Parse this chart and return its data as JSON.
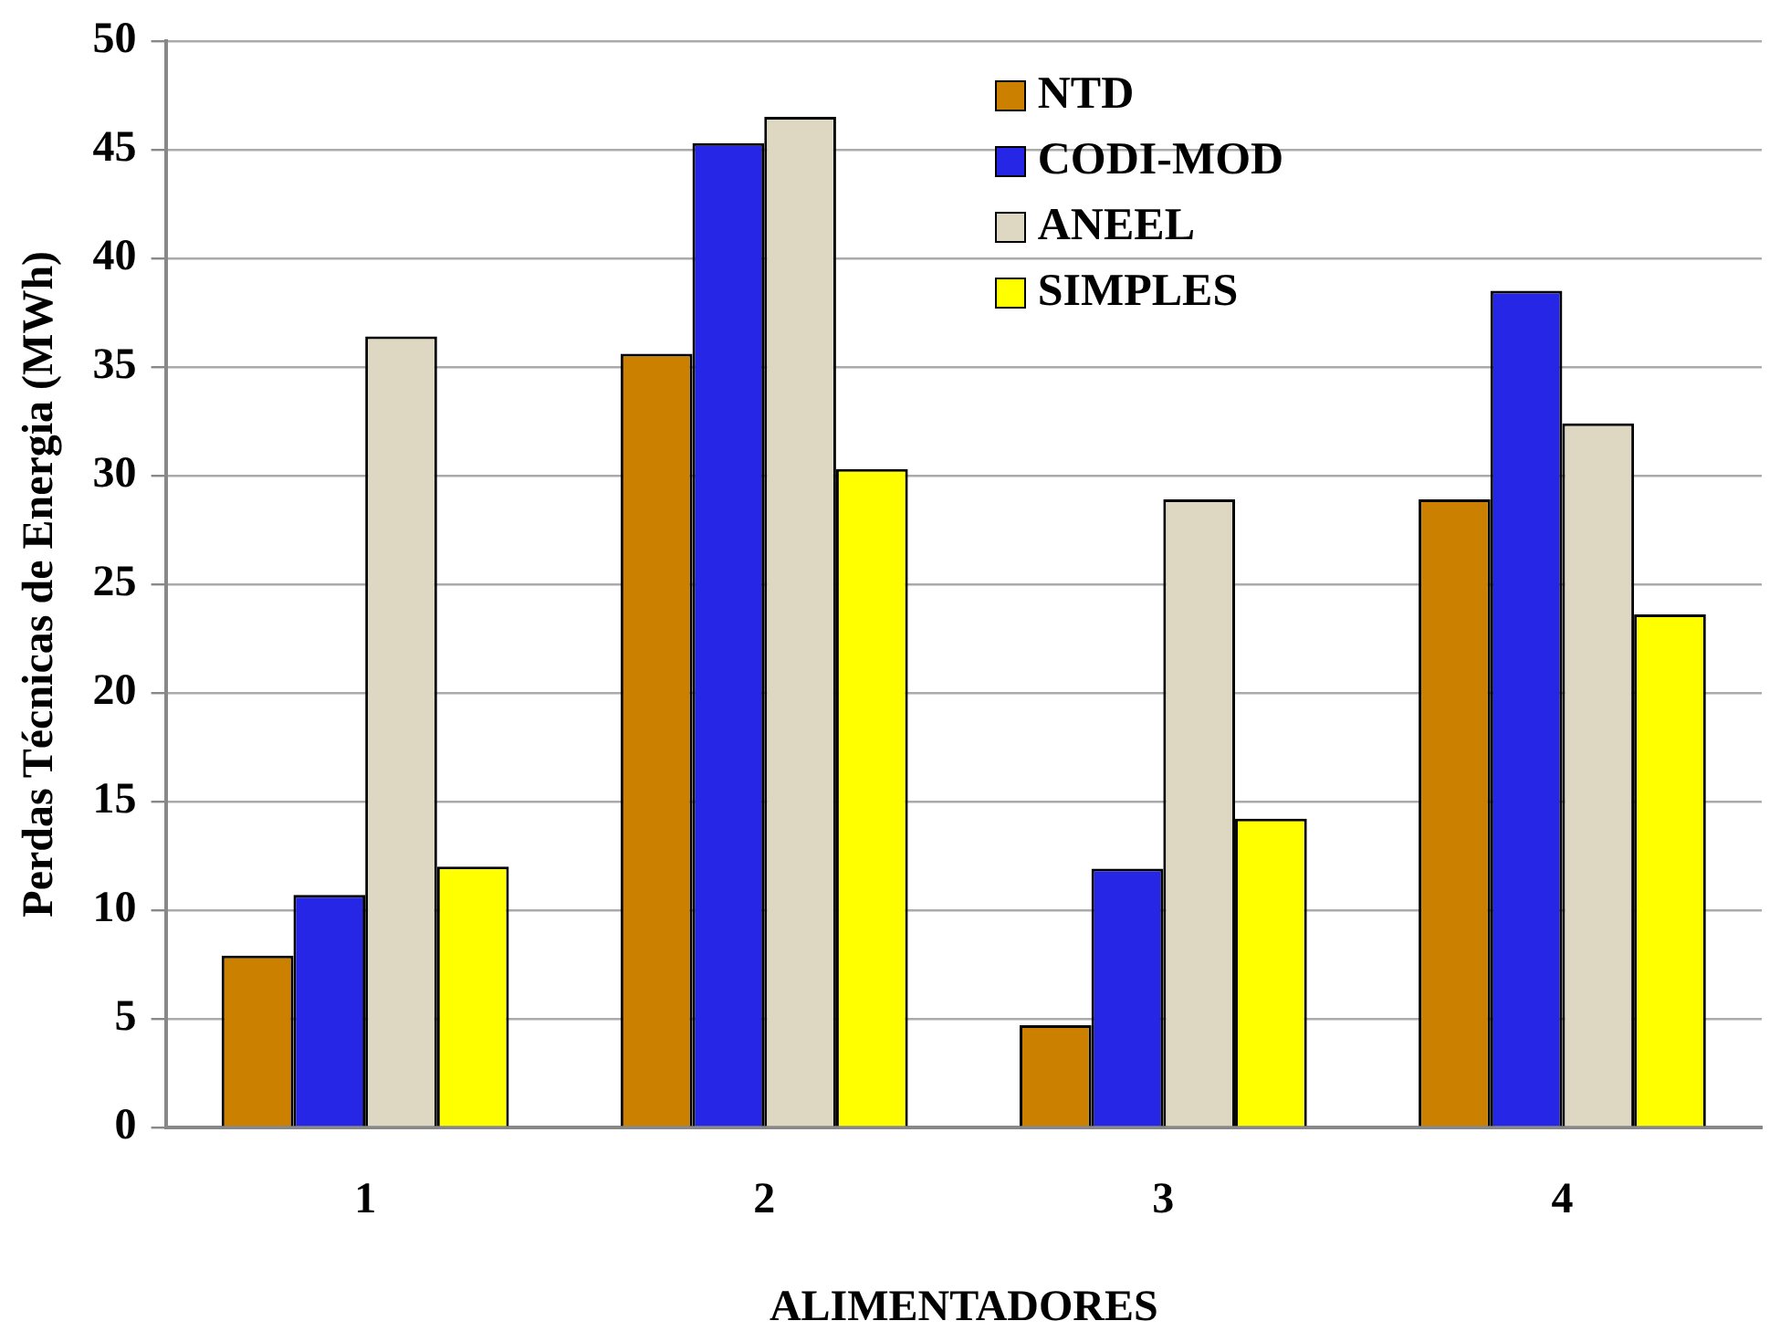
{
  "chart_data": {
    "type": "bar",
    "xlabel": "ALIMENTADORES",
    "ylabel": "Perdas Técnicas de Energia (MWh)",
    "categories": [
      "1",
      "2",
      "3",
      "4"
    ],
    "series": [
      {
        "name": "NTD",
        "color": "#cc8000",
        "values": [
          7.9,
          35.6,
          4.7,
          28.9
        ]
      },
      {
        "name": "CODI-MOD",
        "color": "#2626e6",
        "values": [
          10.7,
          45.3,
          11.9,
          38.5
        ]
      },
      {
        "name": "ANEEL",
        "color": "#ded8c2",
        "values": [
          36.4,
          46.5,
          28.9,
          32.4
        ]
      },
      {
        "name": "SIMPLES",
        "color": "#ffff00",
        "values": [
          12.0,
          30.3,
          14.2,
          23.6
        ]
      }
    ],
    "ylim": [
      0,
      50
    ],
    "yticks": [
      0,
      5,
      10,
      15,
      20,
      25,
      30,
      35,
      40,
      45,
      50
    ],
    "grid": "y",
    "legend": "top right"
  }
}
